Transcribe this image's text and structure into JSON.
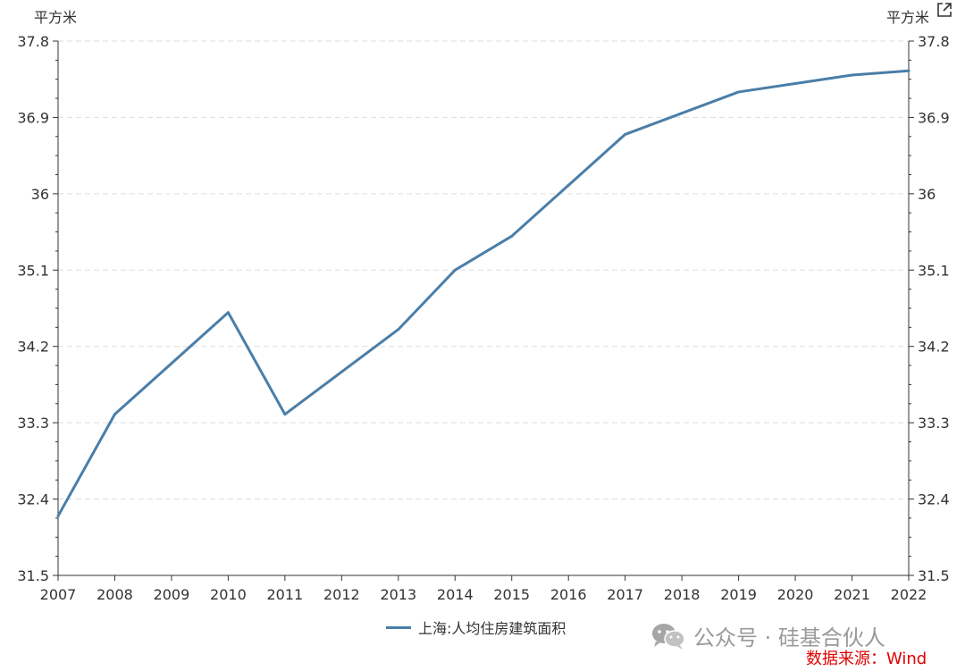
{
  "units": {
    "left": "平方米",
    "right": "平方米"
  },
  "watermark": {
    "text": "公众号 · 硅基合伙人",
    "icon": "wechat-icon"
  },
  "source": "数据来源：Wind",
  "colors": {
    "series": "#4a7ea8",
    "axis": "#333333",
    "grid": "#dddddd",
    "source": "#e00000",
    "watermark": "#9a9a9a"
  },
  "chart_data": {
    "type": "line",
    "x": [
      "2007",
      "2008",
      "2009",
      "2010",
      "2011",
      "2012",
      "2013",
      "2014",
      "2015",
      "2016",
      "2017",
      "2018",
      "2019",
      "2020",
      "2021",
      "2022"
    ],
    "series": [
      {
        "name": "上海:人均住房建筑面积",
        "values": [
          32.2,
          33.4,
          34.0,
          34.6,
          33.4,
          33.9,
          34.4,
          35.1,
          35.5,
          36.1,
          36.7,
          36.95,
          37.2,
          37.3,
          37.4,
          37.45
        ]
      }
    ],
    "ylim": [
      31.5,
      37.8
    ],
    "yticks": [
      "31.5",
      "32.4",
      "33.3",
      "34.2",
      "35.1",
      "36",
      "36.9",
      "37.8"
    ],
    "y_minor_ticks_per_major": 3,
    "ylabel": "平方米",
    "ylabel_right": "平方米",
    "dual_y_axis_mirrored": true,
    "grid": "horizontal dashed",
    "legend": "bottom-center"
  }
}
